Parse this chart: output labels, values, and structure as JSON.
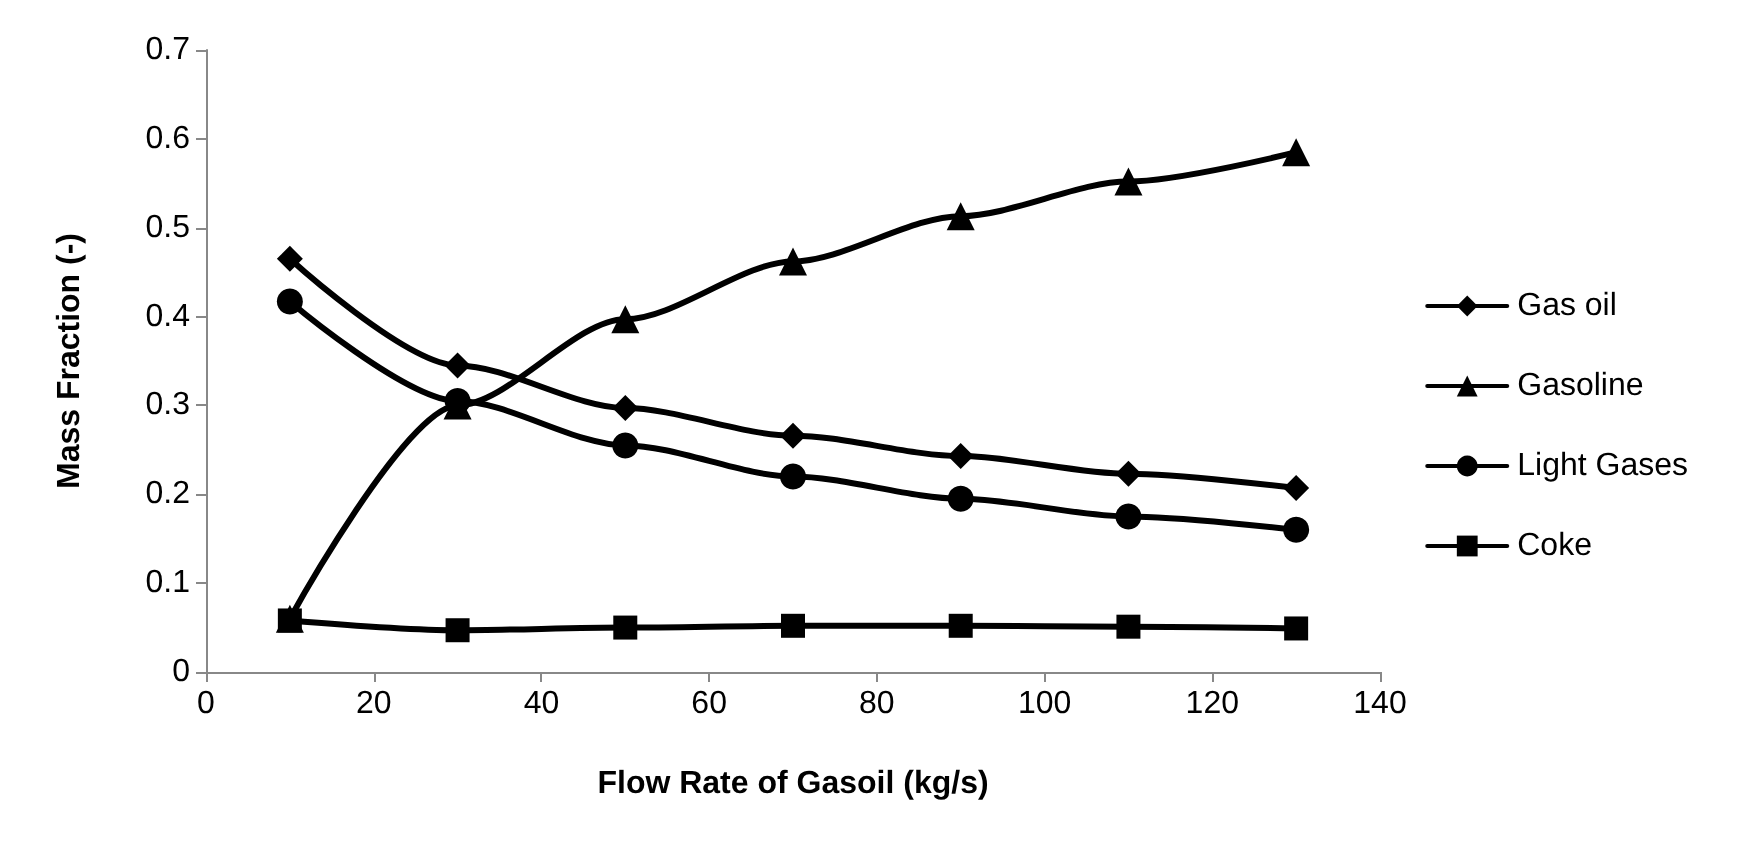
{
  "chart_data": {
    "type": "line",
    "xlabel": "Flow Rate of Gasoil (kg/s)",
    "ylabel": "Mass Fraction (-)",
    "x": [
      10,
      30,
      50,
      70,
      90,
      110,
      130
    ],
    "xlim": [
      0,
      140
    ],
    "xticks": [
      0,
      20,
      40,
      60,
      80,
      100,
      120,
      140
    ],
    "ylim": [
      0,
      0.7
    ],
    "yticks": [
      0,
      0.1,
      0.2,
      0.3,
      0.4,
      0.5,
      0.6,
      0.7
    ],
    "grid": false,
    "legend": "right",
    "line_style": "solid",
    "series": [
      {
        "name": "Gas oil",
        "color": "#000000",
        "marker": "diamond",
        "values": [
          0.465,
          0.345,
          0.297,
          0.266,
          0.243,
          0.223,
          0.207
        ]
      },
      {
        "name": "Gasoline",
        "color": "#000000",
        "marker": "triangle",
        "values": [
          0.06,
          0.3,
          0.397,
          0.462,
          0.513,
          0.552,
          0.585
        ]
      },
      {
        "name": "Light Gases",
        "color": "#000000",
        "marker": "circle",
        "values": [
          0.417,
          0.305,
          0.255,
          0.22,
          0.195,
          0.175,
          0.16
        ]
      },
      {
        "name": "Coke",
        "color": "#000000",
        "marker": "square",
        "values": [
          0.058,
          0.047,
          0.05,
          0.052,
          0.052,
          0.051,
          0.049
        ]
      }
    ]
  }
}
